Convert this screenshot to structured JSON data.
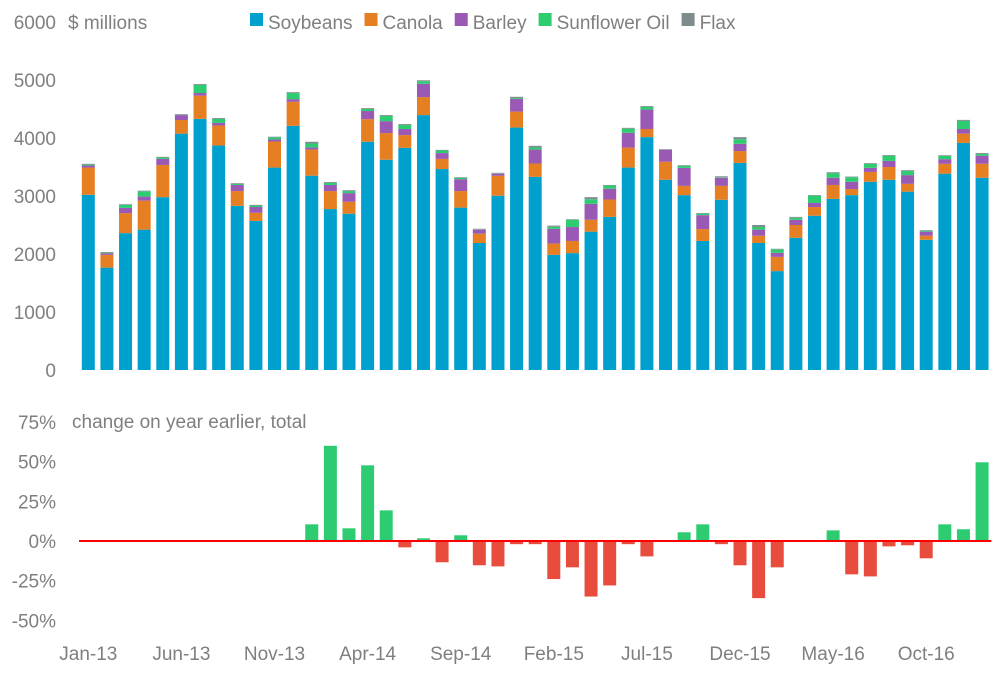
{
  "chart_data": [
    {
      "type": "bar",
      "stacked": true,
      "title": "",
      "ylabel": "$ millions",
      "ylim": [
        0,
        6000
      ],
      "yticks": [
        "0",
        "1000",
        "2000",
        "3000",
        "4000",
        "5000",
        "6000"
      ],
      "legend_position": "top",
      "colors": {
        "Soybeans": "#00a0ce",
        "Canola": "#e67e22",
        "Barley": "#9b59b6",
        "Sunflower Oil": "#2ecc71",
        "Flax": "#7f8c8d"
      },
      "categories": [
        "Jan-13",
        "Feb-13",
        "Mar-13",
        "Apr-13",
        "May-13",
        "Jun-13",
        "Jul-13",
        "Aug-13",
        "Sep-13",
        "Oct-13",
        "Nov-13",
        "Dec-13",
        "Jan-14",
        "Feb-14",
        "Mar-14",
        "Apr-14",
        "May-14",
        "Jun-14",
        "Jul-14",
        "Aug-14",
        "Sep-14",
        "Oct-14",
        "Nov-14",
        "Dec-14",
        "Jan-15",
        "Feb-15",
        "Mar-15",
        "Apr-15",
        "May-15",
        "Jun-15",
        "Jul-15",
        "Aug-15",
        "Sep-15",
        "Oct-15",
        "Nov-15",
        "Dec-15",
        "Jan-16",
        "Feb-16",
        "Mar-16",
        "Apr-16",
        "May-16",
        "Jun-16",
        "Jul-16",
        "Aug-16",
        "Sep-16",
        "Oct-16",
        "Nov-16",
        "Dec-16",
        "Jan-17"
      ],
      "xtick_labels": [
        "Jan-13",
        "Jun-13",
        "Nov-13",
        "Apr-14",
        "Sep-14",
        "Feb-15",
        "Jul-15",
        "Dec-15",
        "May-16",
        "Oct-16"
      ],
      "series": [
        {
          "name": "Soybeans",
          "values": [
            3020,
            1765,
            2360,
            2420,
            2980,
            4075,
            4330,
            3870,
            2830,
            2570,
            3490,
            4210,
            3350,
            2775,
            2695,
            3935,
            3625,
            3830,
            4395,
            3465,
            2800,
            2190,
            3005,
            4180,
            3330,
            1985,
            2015,
            2385,
            2640,
            3490,
            4015,
            3280,
            3015,
            2225,
            2935,
            3570,
            2190,
            1705,
            2280,
            2660,
            2950,
            3015,
            3245,
            3280,
            3075,
            2245,
            3385,
            3915,
            3315
          ]
        },
        {
          "name": "Canola",
          "values": [
            470,
            220,
            345,
            500,
            555,
            235,
            400,
            345,
            255,
            140,
            450,
            415,
            450,
            310,
            205,
            390,
            460,
            220,
            310,
            175,
            285,
            160,
            345,
            275,
            230,
            195,
            210,
            205,
            300,
            345,
            140,
            310,
            160,
            205,
            240,
            205,
            125,
            245,
            220,
            150,
            240,
            105,
            170,
            220,
            135,
            70,
            170,
            160,
            240
          ]
        },
        {
          "name": "Barley",
          "values": [
            35,
            25,
            90,
            70,
            105,
            85,
            45,
            45,
            105,
            100,
            35,
            45,
            35,
            105,
            150,
            140,
            205,
            105,
            230,
            100,
            205,
            70,
            35,
            220,
            240,
            255,
            240,
            275,
            185,
            255,
            335,
            205,
            310,
            240,
            140,
            125,
            105,
            70,
            90,
            70,
            125,
            125,
            70,
            105,
            150,
            70,
            80,
            80,
            140
          ]
        },
        {
          "name": "Sunflower Oil",
          "values": [
            15,
            10,
            50,
            90,
            23,
            5,
            140,
            70,
            20,
            25,
            35,
            105,
            70,
            35,
            35,
            35,
            90,
            70,
            45,
            45,
            25,
            5,
            5,
            15,
            35,
            35,
            125,
            80,
            55,
            70,
            45,
            0,
            35,
            25,
            10,
            80,
            45,
            60,
            35,
            125,
            80,
            80,
            70,
            90,
            70,
            15,
            55,
            140,
            30
          ]
        },
        {
          "name": "Flax",
          "values": [
            15,
            15,
            12,
            12,
            12,
            12,
            15,
            15,
            12,
            12,
            12,
            15,
            30,
            15,
            15,
            15,
            15,
            15,
            15,
            10,
            10,
            10,
            10,
            20,
            30,
            20,
            10,
            35,
            10,
            15,
            15,
            12,
            12,
            12,
            15,
            35,
            35,
            10,
            15,
            12,
            15,
            10,
            12,
            12,
            15,
            12,
            12,
            17,
            15
          ]
        }
      ]
    },
    {
      "type": "bar",
      "title": "change on year earlier, total",
      "ylim": [
        -50,
        75
      ],
      "yticks": [
        "-50%",
        "-25%",
        "0%",
        "25%",
        "50%",
        "75%"
      ],
      "unit": "%",
      "colors": {
        "positive": "#2ecc71",
        "negative": "#e74c3c",
        "zero_line": "#ff0000"
      },
      "values": [
        null,
        null,
        null,
        null,
        null,
        null,
        null,
        null,
        null,
        null,
        null,
        null,
        10.5,
        60,
        8,
        47.7,
        19.3,
        -4,
        1.7,
        -13.4,
        3.6,
        -15.3,
        -16,
        -2,
        -2,
        -24,
        -16.6,
        -35,
        -28,
        -2,
        -9.7,
        0,
        5.5,
        10.5,
        -2,
        -15.3,
        -36,
        -16.6,
        0,
        0,
        6.7,
        -21,
        -22.3,
        -3.4,
        -2.7,
        -10.9,
        10.5,
        7.4,
        49.6
      ]
    }
  ]
}
